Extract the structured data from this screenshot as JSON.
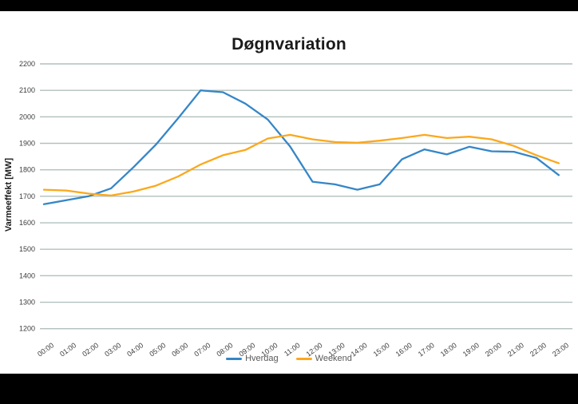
{
  "letterbox_color": "#000000",
  "background_color": "#ffffff",
  "grid_color": "#b2c0bd",
  "tick_label_color": "#3c3c3c",
  "chart_data": {
    "type": "line",
    "title": "Døgnvariation",
    "xlabel": "",
    "ylabel": "Varmeeffekt [MW]",
    "ylim": [
      1200,
      2200
    ],
    "ytick_step": 100,
    "yticks": [
      1200,
      1300,
      1400,
      1500,
      1600,
      1700,
      1800,
      1900,
      2000,
      2100,
      2200
    ],
    "grid": true,
    "legend_position": "bottom",
    "categories": [
      "00:00",
      "01:00",
      "02:00",
      "03:00",
      "04:00",
      "05:00",
      "06:00",
      "07:00",
      "08:00",
      "09:00",
      "10:00",
      "11:00",
      "12:00",
      "13:00",
      "14:00",
      "15:00",
      "16:00",
      "17:00",
      "18:00",
      "19:00",
      "20:00",
      "21:00",
      "22:00",
      "23:00"
    ],
    "series": [
      {
        "name": "Hverdag",
        "color": "#3586c7",
        "values": [
          1670,
          1685,
          1700,
          1730,
          1810,
          1895,
          1995,
          2100,
          2093,
          2050,
          1990,
          1888,
          1755,
          1745,
          1725,
          1745,
          1840,
          1877,
          1858,
          1887,
          1870,
          1868,
          1845,
          1780
        ]
      },
      {
        "name": "Weekend",
        "color": "#fba81c",
        "values": [
          1725,
          1722,
          1710,
          1703,
          1718,
          1740,
          1775,
          1820,
          1855,
          1875,
          1918,
          1932,
          1915,
          1905,
          1902,
          1910,
          1920,
          1932,
          1920,
          1925,
          1915,
          1890,
          1855,
          1825
        ]
      }
    ]
  }
}
